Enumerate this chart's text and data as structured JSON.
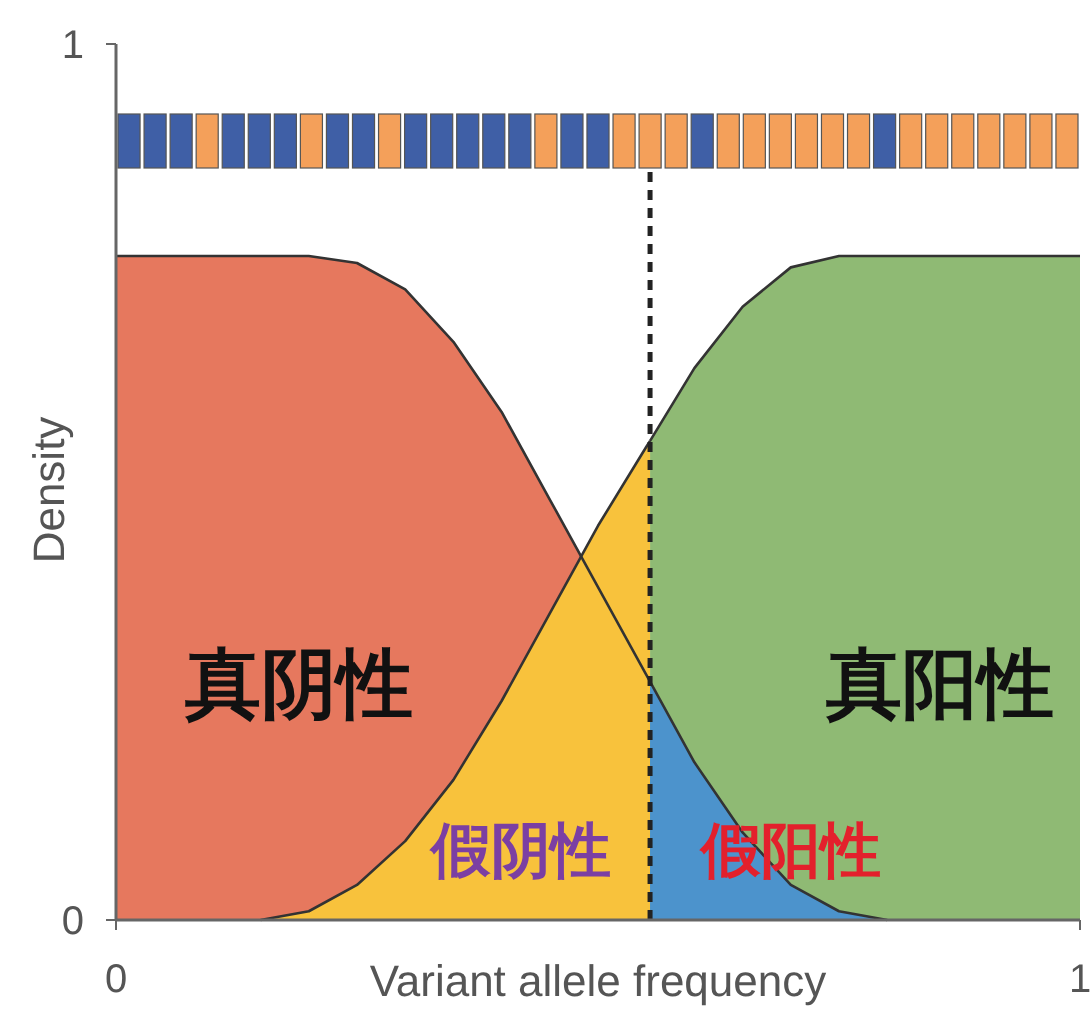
{
  "chart_data": {
    "type": "area",
    "xlabel": "Variant allele frequency",
    "ylabel": "Density",
    "xlim": [
      0,
      1
    ],
    "ylim": [
      0,
      1
    ],
    "xticks": [
      0,
      1
    ],
    "yticks": [
      0,
      1
    ],
    "grid": false,
    "series": [
      {
        "color": "#e6785e",
        "x": [
          0,
          0.2,
          0.25,
          0.3,
          0.35,
          0.4,
          0.45,
          0.5,
          0.55,
          0.554
        ],
        "values": [
          0.758,
          0.758,
          0.75,
          0.72,
          0.66,
          0.58,
          0.48,
          0.38,
          0.28,
          0.272
        ]
      },
      {
        "color": "#8fba74",
        "x": [
          0.554,
          0.6,
          0.65,
          0.7,
          0.75,
          0.8,
          1
        ],
        "values": [
          0.547,
          0.63,
          0.7,
          0.745,
          0.758,
          0.758,
          0.758
        ]
      },
      {
        "color": "#f8c23c",
        "x": [
          0.15,
          0.2,
          0.25,
          0.3,
          0.35,
          0.4,
          0.45,
          0.5,
          0.55,
          0.554
        ],
        "values": [
          0,
          0.01,
          0.04,
          0.09,
          0.16,
          0.25,
          0.35,
          0.45,
          0.54,
          0.547
        ]
      },
      {
        "color": "#4c93cc",
        "x": [
          0.554,
          0.6,
          0.65,
          0.7,
          0.75,
          0.8
        ],
        "values": [
          0.272,
          0.18,
          0.1,
          0.04,
          0.01,
          0
        ]
      }
    ],
    "ref_lines": [
      {
        "axis": "x",
        "value": 0.554,
        "line_style": "dashed",
        "color": "#222222"
      }
    ],
    "annotations": [
      "真阴性",
      "真阳性",
      "假阴性",
      "假阳性"
    ]
  }
}
